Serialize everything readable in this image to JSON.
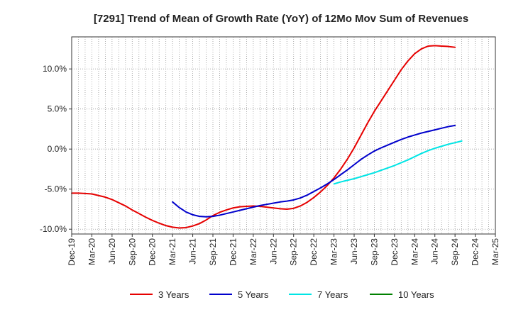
{
  "chart_data": {
    "type": "line",
    "title": "[7291]  Trend of Mean of Growth Rate (YoY) of 12Mo Mov Sum of Revenues",
    "xlabel": "",
    "ylabel": "",
    "ylim": [
      -10.6,
      14.0
    ],
    "grid": true,
    "legend_position": "bottom",
    "x_tick_labels": [
      "Dec-19",
      "Mar-20",
      "Jun-20",
      "Sep-20",
      "Dec-20",
      "Mar-21",
      "Jun-21",
      "Sep-21",
      "Dec-21",
      "Mar-22",
      "Jun-22",
      "Sep-22",
      "Dec-22",
      "Mar-23",
      "Jun-23",
      "Sep-23",
      "Dec-23",
      "Mar-24",
      "Jun-24",
      "Sep-24",
      "Dec-24",
      "Mar-25"
    ],
    "y_ticks": [
      10,
      5,
      0,
      -5,
      -10
    ],
    "y_tick_labels": [
      "10.0%",
      "5.0%",
      "0.0%",
      "-5.0%",
      "-10.0%"
    ],
    "series": [
      {
        "name": "3 Years",
        "color": "#e60000",
        "start_month": 0,
        "values": [
          -5.5,
          -5.5,
          -5.55,
          -5.6,
          -5.8,
          -6.0,
          -6.3,
          -6.7,
          -7.1,
          -7.6,
          -8.05,
          -8.5,
          -8.9,
          -9.25,
          -9.55,
          -9.75,
          -9.85,
          -9.8,
          -9.6,
          -9.3,
          -8.85,
          -8.3,
          -7.9,
          -7.6,
          -7.35,
          -7.2,
          -7.15,
          -7.1,
          -7.15,
          -7.25,
          -7.35,
          -7.45,
          -7.5,
          -7.4,
          -7.1,
          -6.65,
          -6.05,
          -5.35,
          -4.55,
          -3.6,
          -2.5,
          -1.25,
          0.15,
          1.7,
          3.25,
          4.7,
          6.0,
          7.3,
          8.6,
          9.9,
          11.0,
          11.9,
          12.5,
          12.85,
          12.9,
          12.85,
          12.8,
          12.7
        ]
      },
      {
        "name": "5 Years",
        "color": "#0000cc",
        "start_month": 15,
        "values": [
          -6.6,
          -7.3,
          -7.85,
          -8.2,
          -8.4,
          -8.45,
          -8.4,
          -8.25,
          -8.05,
          -7.85,
          -7.65,
          -7.45,
          -7.25,
          -7.05,
          -6.9,
          -6.75,
          -6.6,
          -6.5,
          -6.35,
          -6.1,
          -5.75,
          -5.3,
          -4.85,
          -4.35,
          -3.8,
          -3.2,
          -2.6,
          -1.95,
          -1.3,
          -0.75,
          -0.25,
          0.15,
          0.5,
          0.85,
          1.2,
          1.5,
          1.75,
          2.0,
          2.2,
          2.4,
          2.6,
          2.8,
          2.95
        ]
      },
      {
        "name": "7 Years",
        "color": "#00e5e5",
        "start_month": 39,
        "values": [
          -4.35,
          -4.1,
          -3.9,
          -3.7,
          -3.45,
          -3.2,
          -2.95,
          -2.65,
          -2.35,
          -2.05,
          -1.7,
          -1.35,
          -0.95,
          -0.55,
          -0.2,
          0.1,
          0.35,
          0.6,
          0.8,
          1.0
        ]
      },
      {
        "name": "10 Years",
        "color": "#008000",
        "start_month": 0,
        "values": []
      }
    ]
  }
}
